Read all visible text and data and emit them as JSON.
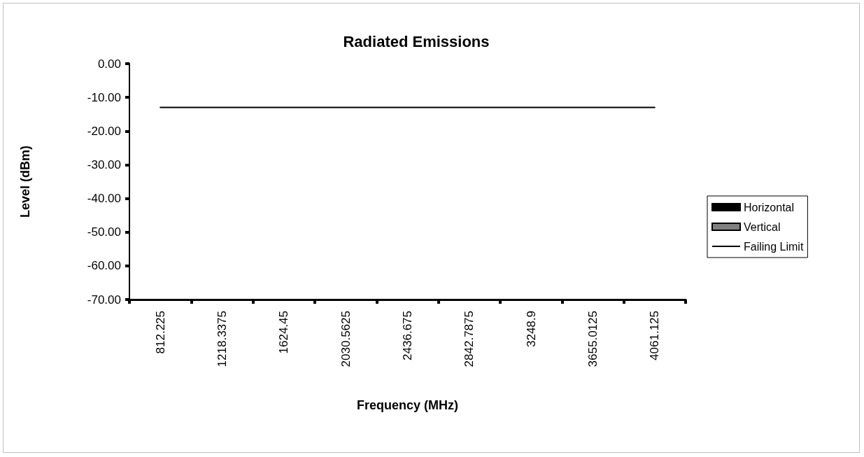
{
  "chart_data": {
    "type": "bar",
    "title": "Radiated Emissions",
    "xlabel": "Frequency (MHz)",
    "ylabel": "Level (dBm)",
    "categories": [
      "812.225",
      "1218.3375",
      "1624.45",
      "2030.5625",
      "2436.675",
      "2842.7875",
      "3248.9",
      "3655.0125",
      "4061.125"
    ],
    "series": [
      {
        "name": "Horizontal",
        "color": "#000000",
        "values": [
          null,
          null,
          null,
          null,
          null,
          null,
          null,
          null,
          null
        ]
      },
      {
        "name": "Vertical",
        "color": "#808080",
        "values": [
          null,
          null,
          null,
          null,
          null,
          null,
          null,
          null,
          null
        ]
      },
      {
        "name": "Failing Limit",
        "type": "line",
        "color": "#000000",
        "marker": "none",
        "line_style": "solid",
        "values": [
          -13,
          -13,
          -13,
          -13,
          -13,
          -13,
          -13,
          -13,
          -13
        ]
      }
    ],
    "ylim": [
      -70,
      0
    ],
    "yticks": [
      {
        "value": -70,
        "label": "-70.00"
      },
      {
        "value": -60,
        "label": "-60.00"
      },
      {
        "value": -50,
        "label": "-50.00"
      },
      {
        "value": -40,
        "label": "-40.00"
      },
      {
        "value": -30,
        "label": "-30.00"
      },
      {
        "value": -20,
        "label": "-20.00"
      },
      {
        "value": -10,
        "label": "-10.00"
      },
      {
        "value": 0,
        "label": "0.00"
      }
    ],
    "grid": false,
    "legend": "right"
  }
}
